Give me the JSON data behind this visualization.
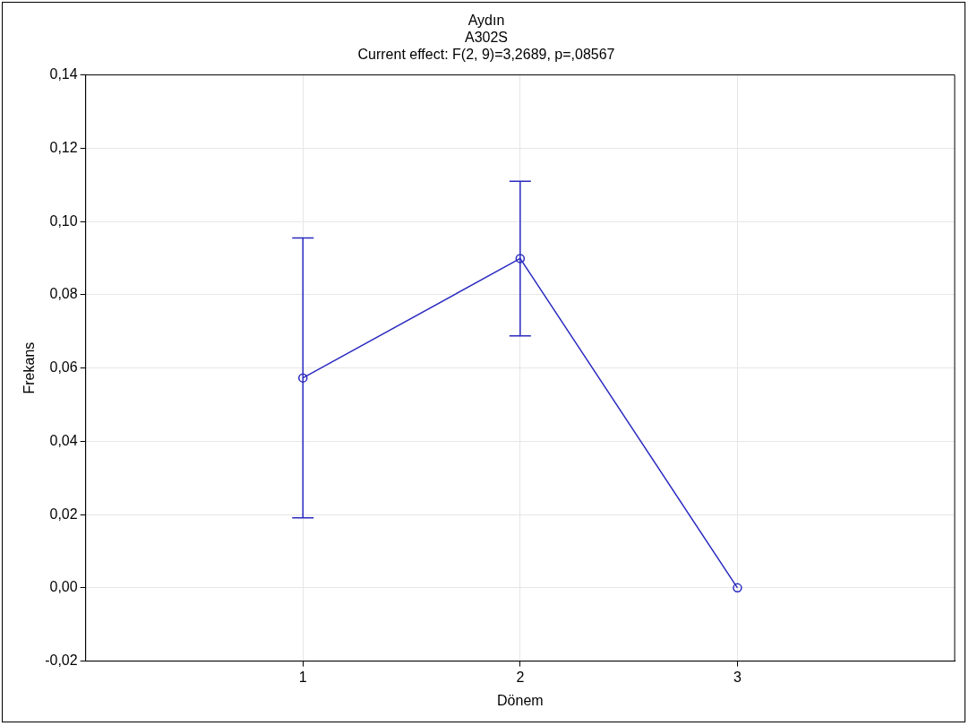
{
  "chart_data": {
    "type": "line",
    "title": "Aydın",
    "subtitle": "A302S",
    "annotations": [
      "Current effect: F(2, 9)=3,2689, p=,08567"
    ],
    "xlabel": "Dönem",
    "ylabel": "Frekans",
    "categories": [
      "1",
      "2",
      "3"
    ],
    "series": [
      {
        "color": "#2a2ac0",
        "values": [
          0.0573,
          0.0899,
          0.0
        ],
        "errors": [
          0.0382,
          0.0211,
          null
        ]
      }
    ],
    "ylim": [
      -0.02,
      0.14
    ],
    "yticks": [
      {
        "value": -0.02,
        "label": "-0,02"
      },
      {
        "value": 0,
        "label": "0,00"
      },
      {
        "value": 0.02,
        "label": "0,02"
      },
      {
        "value": 0.04,
        "label": "0,04"
      },
      {
        "value": 0.06,
        "label": "0,06"
      },
      {
        "value": 0.08,
        "label": "0,08"
      },
      {
        "value": 0.1,
        "label": "0,10"
      },
      {
        "value": 0.12,
        "label": "0,12"
      },
      {
        "value": 0.14,
        "label": "0,14"
      }
    ],
    "grid": true,
    "marker": "circle",
    "line_style": "solid",
    "legend": false
  }
}
